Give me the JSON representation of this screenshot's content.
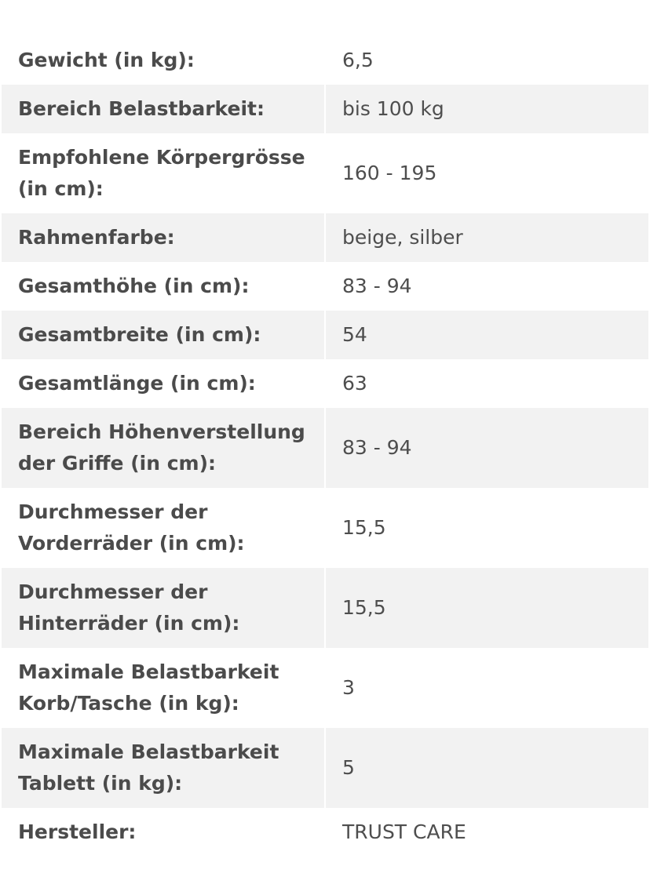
{
  "specs": [
    {
      "label": "Gewicht (in kg):",
      "value": "6,5"
    },
    {
      "label": "Bereich Belastbarkeit:",
      "value": "bis 100 kg"
    },
    {
      "label": "Empfohlene Körpergrösse (in cm):",
      "value": "160 - 195"
    },
    {
      "label": "Rahmenfarbe:",
      "value": "beige, silber"
    },
    {
      "label": "Gesamthöhe (in cm):",
      "value": "83 - 94"
    },
    {
      "label": "Gesamtbreite (in cm):",
      "value": "54"
    },
    {
      "label": "Gesamtlänge (in cm):",
      "value": "63"
    },
    {
      "label": "Bereich Höhenverstellung der Griffe (in cm):",
      "value": "83 - 94"
    },
    {
      "label": "Durchmesser der Vorderräder (in cm):",
      "value": "15,5"
    },
    {
      "label": "Durchmesser der Hinterräder (in cm):",
      "value": "15,5"
    },
    {
      "label": "Maximale Belastbarkeit Korb/Tasche (in kg):",
      "value": "3"
    },
    {
      "label": "Maximale Belastbarkeit Tablett (in kg):",
      "value": "5"
    },
    {
      "label": "Hersteller:",
      "value": "TRUST CARE"
    }
  ]
}
